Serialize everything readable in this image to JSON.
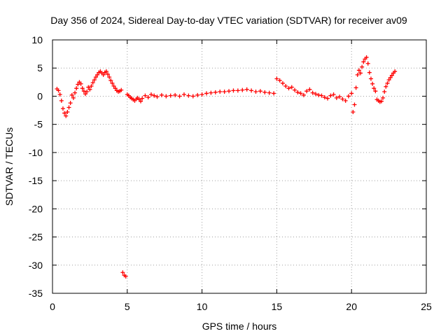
{
  "chart_data": {
    "type": "scatter",
    "title": "Day 356 of 2024, Sidereal Day-to-day VTEC variation (SDTVAR) for receiver av09",
    "xlabel": "GPS time / hours",
    "ylabel": "SDTVAR / TECUs",
    "xlim": [
      0,
      25
    ],
    "ylim": [
      -35,
      10
    ],
    "xticks": [
      0,
      5,
      10,
      15,
      20,
      25
    ],
    "yticks": [
      10,
      5,
      0,
      -5,
      -10,
      -15,
      -20,
      -25,
      -30,
      -35
    ],
    "grid": true,
    "marker": "plus",
    "color": "#ff0000",
    "series": [
      {
        "name": "SDTVAR",
        "x": [
          0.3,
          0.4,
          0.5,
          0.6,
          0.7,
          0.8,
          0.9,
          1.0,
          1.1,
          1.2,
          1.3,
          1.4,
          1.5,
          1.6,
          1.7,
          1.8,
          1.9,
          2.0,
          2.1,
          2.2,
          2.3,
          2.4,
          2.5,
          2.6,
          2.7,
          2.8,
          2.9,
          3.0,
          3.1,
          3.2,
          3.3,
          3.4,
          3.5,
          3.6,
          3.7,
          3.8,
          3.9,
          4.0,
          4.1,
          4.2,
          4.3,
          4.4,
          4.5,
          4.6,
          4.7,
          4.8,
          4.9,
          5.0,
          5.1,
          5.2,
          5.3,
          5.4,
          5.5,
          5.6,
          5.7,
          5.8,
          5.9,
          6.0,
          6.2,
          6.4,
          6.6,
          6.8,
          7.0,
          7.3,
          7.6,
          7.9,
          8.2,
          8.5,
          8.8,
          9.1,
          9.4,
          9.7,
          10.0,
          10.3,
          10.6,
          10.9,
          11.2,
          11.5,
          11.8,
          12.1,
          12.4,
          12.7,
          13.0,
          13.3,
          13.6,
          13.9,
          14.2,
          14.5,
          14.8,
          15.0,
          15.2,
          15.4,
          15.6,
          15.8,
          16.0,
          16.2,
          16.4,
          16.6,
          16.8,
          17.0,
          17.2,
          17.4,
          17.6,
          17.8,
          18.0,
          18.2,
          18.4,
          18.6,
          18.8,
          19.0,
          19.2,
          19.4,
          19.6,
          19.8,
          20.0,
          20.1,
          20.2,
          20.3,
          20.4,
          20.5,
          20.6,
          20.7,
          20.8,
          20.9,
          21.0,
          21.1,
          21.2,
          21.3,
          21.4,
          21.5,
          21.6,
          21.7,
          21.8,
          21.9,
          22.0,
          22.1,
          22.2,
          22.3,
          22.4,
          22.5,
          22.6,
          22.7,
          22.8,
          22.9
        ],
        "y": [
          1.3,
          1.0,
          0.3,
          -0.8,
          -2.2,
          -3.0,
          -3.5,
          -2.8,
          -2.0,
          -1.2,
          0.2,
          -0.3,
          0.6,
          1.4,
          2.1,
          2.5,
          2.2,
          1.4,
          0.9,
          0.4,
          0.8,
          1.6,
          1.2,
          1.8,
          2.4,
          2.9,
          3.4,
          3.8,
          4.2,
          4.4,
          4.1,
          3.8,
          4.2,
          4.4,
          3.9,
          3.4,
          2.8,
          2.3,
          1.8,
          1.4,
          1.0,
          0.8,
          0.9,
          1.1,
          -31.3,
          -31.8,
          -32.0,
          0.3,
          0.1,
          -0.2,
          -0.4,
          -0.6,
          -0.8,
          -0.5,
          -0.3,
          -0.6,
          -0.9,
          -0.4,
          0.1,
          -0.2,
          0.3,
          0.1,
          -0.1,
          0.2,
          0.0,
          0.1,
          0.2,
          0.0,
          0.3,
          0.1,
          0.0,
          0.2,
          0.3,
          0.5,
          0.6,
          0.7,
          0.8,
          0.8,
          0.9,
          1.0,
          1.0,
          1.1,
          1.2,
          1.0,
          0.8,
          0.9,
          0.7,
          0.6,
          0.5,
          3.1,
          2.8,
          2.3,
          1.8,
          1.4,
          1.6,
          1.1,
          0.7,
          0.5,
          0.2,
          0.9,
          1.2,
          0.6,
          0.4,
          0.2,
          0.1,
          -0.2,
          -0.4,
          0.1,
          0.3,
          -0.3,
          -0.1,
          -0.5,
          -0.8,
          0.0,
          0.5,
          -2.8,
          -1.5,
          1.5,
          3.8,
          4.6,
          4.1,
          5.2,
          6.1,
          6.6,
          6.9,
          5.8,
          4.2,
          3.1,
          2.2,
          1.4,
          0.9,
          -0.6,
          -0.8,
          -1.0,
          -0.9,
          -0.3,
          0.8,
          1.7,
          2.3,
          2.9,
          3.3,
          3.7,
          4.1,
          4.4
        ]
      }
    ]
  }
}
